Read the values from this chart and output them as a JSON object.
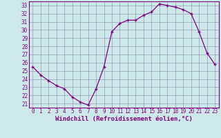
{
  "x": [
    0,
    1,
    2,
    3,
    4,
    5,
    6,
    7,
    8,
    9,
    10,
    11,
    12,
    13,
    14,
    15,
    16,
    17,
    18,
    19,
    20,
    21,
    22,
    23
  ],
  "y": [
    25.5,
    24.5,
    23.8,
    23.2,
    22.8,
    21.8,
    21.2,
    20.8,
    22.8,
    25.5,
    29.8,
    30.8,
    31.2,
    31.2,
    31.8,
    32.2,
    33.2,
    33.0,
    32.8,
    32.5,
    32.0,
    29.8,
    27.2,
    25.8
  ],
  "xlabel": "Windchill (Refroidissement éolien,°C)",
  "xlim": [
    -0.5,
    23.5
  ],
  "ylim": [
    20.5,
    33.5
  ],
  "yticks": [
    21,
    22,
    23,
    24,
    25,
    26,
    27,
    28,
    29,
    30,
    31,
    32,
    33
  ],
  "xticks": [
    0,
    1,
    2,
    3,
    4,
    5,
    6,
    7,
    8,
    9,
    10,
    11,
    12,
    13,
    14,
    15,
    16,
    17,
    18,
    19,
    20,
    21,
    22,
    23
  ],
  "line_color": "#800080",
  "marker": "+",
  "bg_color": "#cce8e8",
  "grid_color": "#9999bb",
  "spine_color": "#800080",
  "tick_fontsize": 5.5,
  "xlabel_fontsize": 6.5
}
